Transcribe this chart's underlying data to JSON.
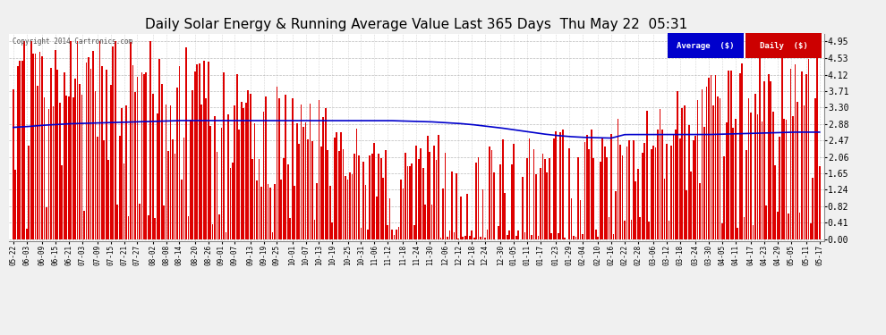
{
  "title": "Daily Solar Energy & Running Average Value Last 365 Days  Thu May 22  05:31",
  "copyright": "Copyright 2014 Cartronics.com",
  "yticks": [
    0.0,
    0.41,
    0.82,
    1.24,
    1.65,
    2.06,
    2.47,
    2.88,
    3.3,
    3.71,
    4.12,
    4.53,
    4.95
  ],
  "ymax": 5.15,
  "ymin": -0.05,
  "bar_color": "#dd0000",
  "avg_color": "#0000cc",
  "bg_color": "#f0f0f0",
  "plot_bg_color": "#ffffff",
  "grid_color": "#aaaaaa",
  "legend_avg_bg": "#0000cc",
  "legend_daily_bg": "#cc0000",
  "legend_avg_text": "Average  ($)",
  "legend_daily_text": "Daily  ($)",
  "title_fontsize": 11,
  "tick_fontsize": 7,
  "xtick_fontsize": 5.5,
  "n_bars": 365,
  "x_labels": [
    "05-22",
    "06-03",
    "06-09",
    "06-15",
    "06-21",
    "07-03",
    "07-09",
    "07-15",
    "07-21",
    "07-27",
    "08-02",
    "08-08",
    "08-14",
    "08-20",
    "08-26",
    "09-01",
    "09-07",
    "09-13",
    "09-19",
    "09-25",
    "10-01",
    "10-07",
    "10-13",
    "10-19",
    "10-25",
    "10-31",
    "11-06",
    "11-12",
    "11-18",
    "11-24",
    "11-30",
    "12-06",
    "12-12",
    "12-18",
    "12-24",
    "12-30",
    "01-05",
    "01-11",
    "01-17",
    "01-23",
    "01-29",
    "02-04",
    "02-10",
    "02-16",
    "02-22",
    "02-28",
    "03-06",
    "03-12",
    "03-18",
    "03-24",
    "03-30",
    "04-05",
    "04-11",
    "04-17",
    "04-23",
    "04-29",
    "05-05",
    "05-11",
    "05-17"
  ],
  "avg_curve": [
    2.8,
    2.82,
    2.85,
    2.87,
    2.89,
    2.9,
    2.91,
    2.92,
    2.93,
    2.94,
    2.95,
    2.96,
    2.97,
    2.97,
    2.97,
    2.97,
    2.97,
    2.97,
    2.97,
    2.97,
    2.97,
    2.97,
    2.97,
    2.97,
    2.97,
    2.97,
    2.97,
    2.97,
    2.96,
    2.95,
    2.94,
    2.92,
    2.9,
    2.87,
    2.83,
    2.79,
    2.74,
    2.69,
    2.64,
    2.6,
    2.57,
    2.55,
    2.54,
    2.53,
    2.62,
    2.62,
    2.62,
    2.62,
    2.62,
    2.62,
    2.62,
    2.63,
    2.64,
    2.65,
    2.66,
    2.67,
    2.68,
    2.68,
    2.68
  ]
}
